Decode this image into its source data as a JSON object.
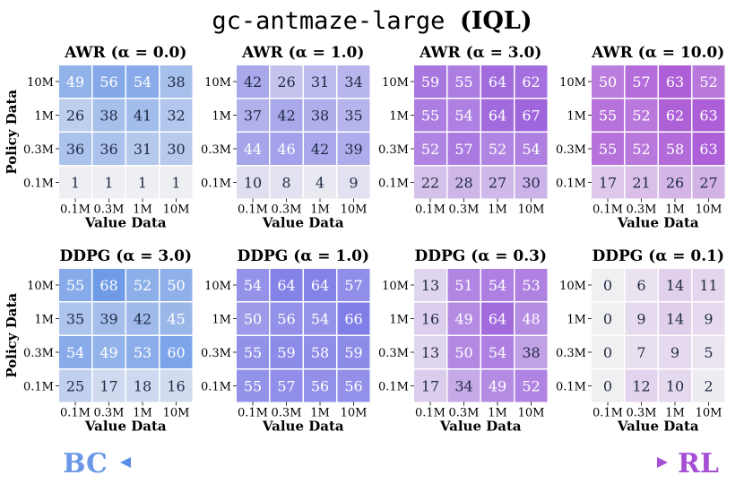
{
  "figure": {
    "title_mono": "gc-antmaze-large",
    "title_paren": "(IQL)",
    "bc_label": "BC",
    "rl_label": "RL",
    "colors": {
      "bc": "#6a97e6",
      "rl": "#a64fd4",
      "empty": "#f0f0f2",
      "text_dark": "#1f2a44",
      "text_light": "#ffffff"
    }
  },
  "chart_data": [
    {
      "type": "heatmap",
      "title": "AWR (α = 0.0)",
      "family": "bc",
      "xlabel": "Value Data",
      "ylabel": "Policy Data",
      "x": [
        "0.1M",
        "0.3M",
        "1M",
        "10M"
      ],
      "y": [
        "10M",
        "1M",
        "0.3M",
        "0.1M"
      ],
      "values": [
        [
          49,
          56,
          54,
          38
        ],
        [
          26,
          38,
          41,
          32
        ],
        [
          36,
          36,
          31,
          30
        ],
        [
          1,
          1,
          1,
          1
        ]
      ]
    },
    {
      "type": "heatmap",
      "title": "AWR (α = 1.0)",
      "family": "mid1",
      "xlabel": "Value Data",
      "ylabel": "",
      "x": [
        "0.1M",
        "0.3M",
        "1M",
        "10M"
      ],
      "y": [
        "10M",
        "1M",
        "0.3M",
        "0.1M"
      ],
      "values": [
        [
          42,
          26,
          31,
          34
        ],
        [
          37,
          42,
          38,
          35
        ],
        [
          44,
          46,
          42,
          39
        ],
        [
          10,
          8,
          4,
          9
        ]
      ]
    },
    {
      "type": "heatmap",
      "title": "AWR (α = 3.0)",
      "family": "mid2",
      "xlabel": "",
      "ylabel": "",
      "x": [
        "0.1M",
        "0.3M",
        "1M",
        "10M"
      ],
      "y": [
        "10M",
        "1M",
        "0.3M",
        "0.1M"
      ],
      "values": [
        [
          59,
          55,
          64,
          62
        ],
        [
          55,
          54,
          64,
          67
        ],
        [
          52,
          57,
          52,
          54
        ],
        [
          22,
          28,
          27,
          30
        ]
      ]
    },
    {
      "type": "heatmap",
      "title": "AWR (α = 10.0)",
      "family": "rl",
      "xlabel": "Value Data",
      "ylabel": "",
      "x": [
        "0.1M",
        "0.3M",
        "1M",
        "10M"
      ],
      "y": [
        "10M",
        "1M",
        "0.3M",
        "0.1M"
      ],
      "values": [
        [
          50,
          57,
          63,
          52
        ],
        [
          55,
          52,
          62,
          63
        ],
        [
          55,
          52,
          58,
          63
        ],
        [
          17,
          21,
          26,
          27
        ]
      ]
    },
    {
      "type": "heatmap",
      "title": "DDPG (α = 3.0)",
      "family": "bc",
      "xlabel": "Value Data",
      "ylabel": "Policy Data",
      "x": [
        "0.1M",
        "0.3M",
        "1M",
        "10M"
      ],
      "y": [
        "10M",
        "1M",
        "0.3M",
        "0.1M"
      ],
      "values": [
        [
          55,
          68,
          52,
          50
        ],
        [
          35,
          39,
          42,
          45
        ],
        [
          54,
          49,
          53,
          60
        ],
        [
          25,
          17,
          18,
          16
        ]
      ]
    },
    {
      "type": "heatmap",
      "title": "DDPG (α = 1.0)",
      "family": "mid1",
      "xlabel": "Value Data",
      "ylabel": "",
      "x": [
        "0.1M",
        "0.3M",
        "1M",
        "10M"
      ],
      "y": [
        "10M",
        "1M",
        "0.3M",
        "0.1M"
      ],
      "values": [
        [
          54,
          64,
          64,
          57
        ],
        [
          50,
          56,
          54,
          66
        ],
        [
          55,
          59,
          58,
          59
        ],
        [
          55,
          57,
          56,
          56
        ]
      ]
    },
    {
      "type": "heatmap",
      "title": "DDPG (α = 0.3)",
      "family": "mid2",
      "xlabel": "Value Data",
      "ylabel": "",
      "x": [
        "0.1M",
        "0.3M",
        "1M",
        "10M"
      ],
      "y": [
        "10M",
        "1M",
        "0.3M",
        "0.1M"
      ],
      "values": [
        [
          13,
          51,
          54,
          53
        ],
        [
          16,
          49,
          64,
          48
        ],
        [
          13,
          50,
          54,
          38
        ],
        [
          17,
          34,
          49,
          52
        ]
      ]
    },
    {
      "type": "heatmap",
      "title": "DDPG (α = 0.1)",
      "family": "rl",
      "xlabel": "Value Data",
      "ylabel": "",
      "x": [
        "0.1M",
        "0.3M",
        "1M",
        "10M"
      ],
      "y": [
        "10M",
        "1M",
        "0.3M",
        "0.1M"
      ],
      "values": [
        [
          0,
          6,
          14,
          11
        ],
        [
          0,
          9,
          14,
          9
        ],
        [
          0,
          7,
          9,
          5
        ],
        [
          0,
          12,
          10,
          2
        ]
      ]
    }
  ]
}
